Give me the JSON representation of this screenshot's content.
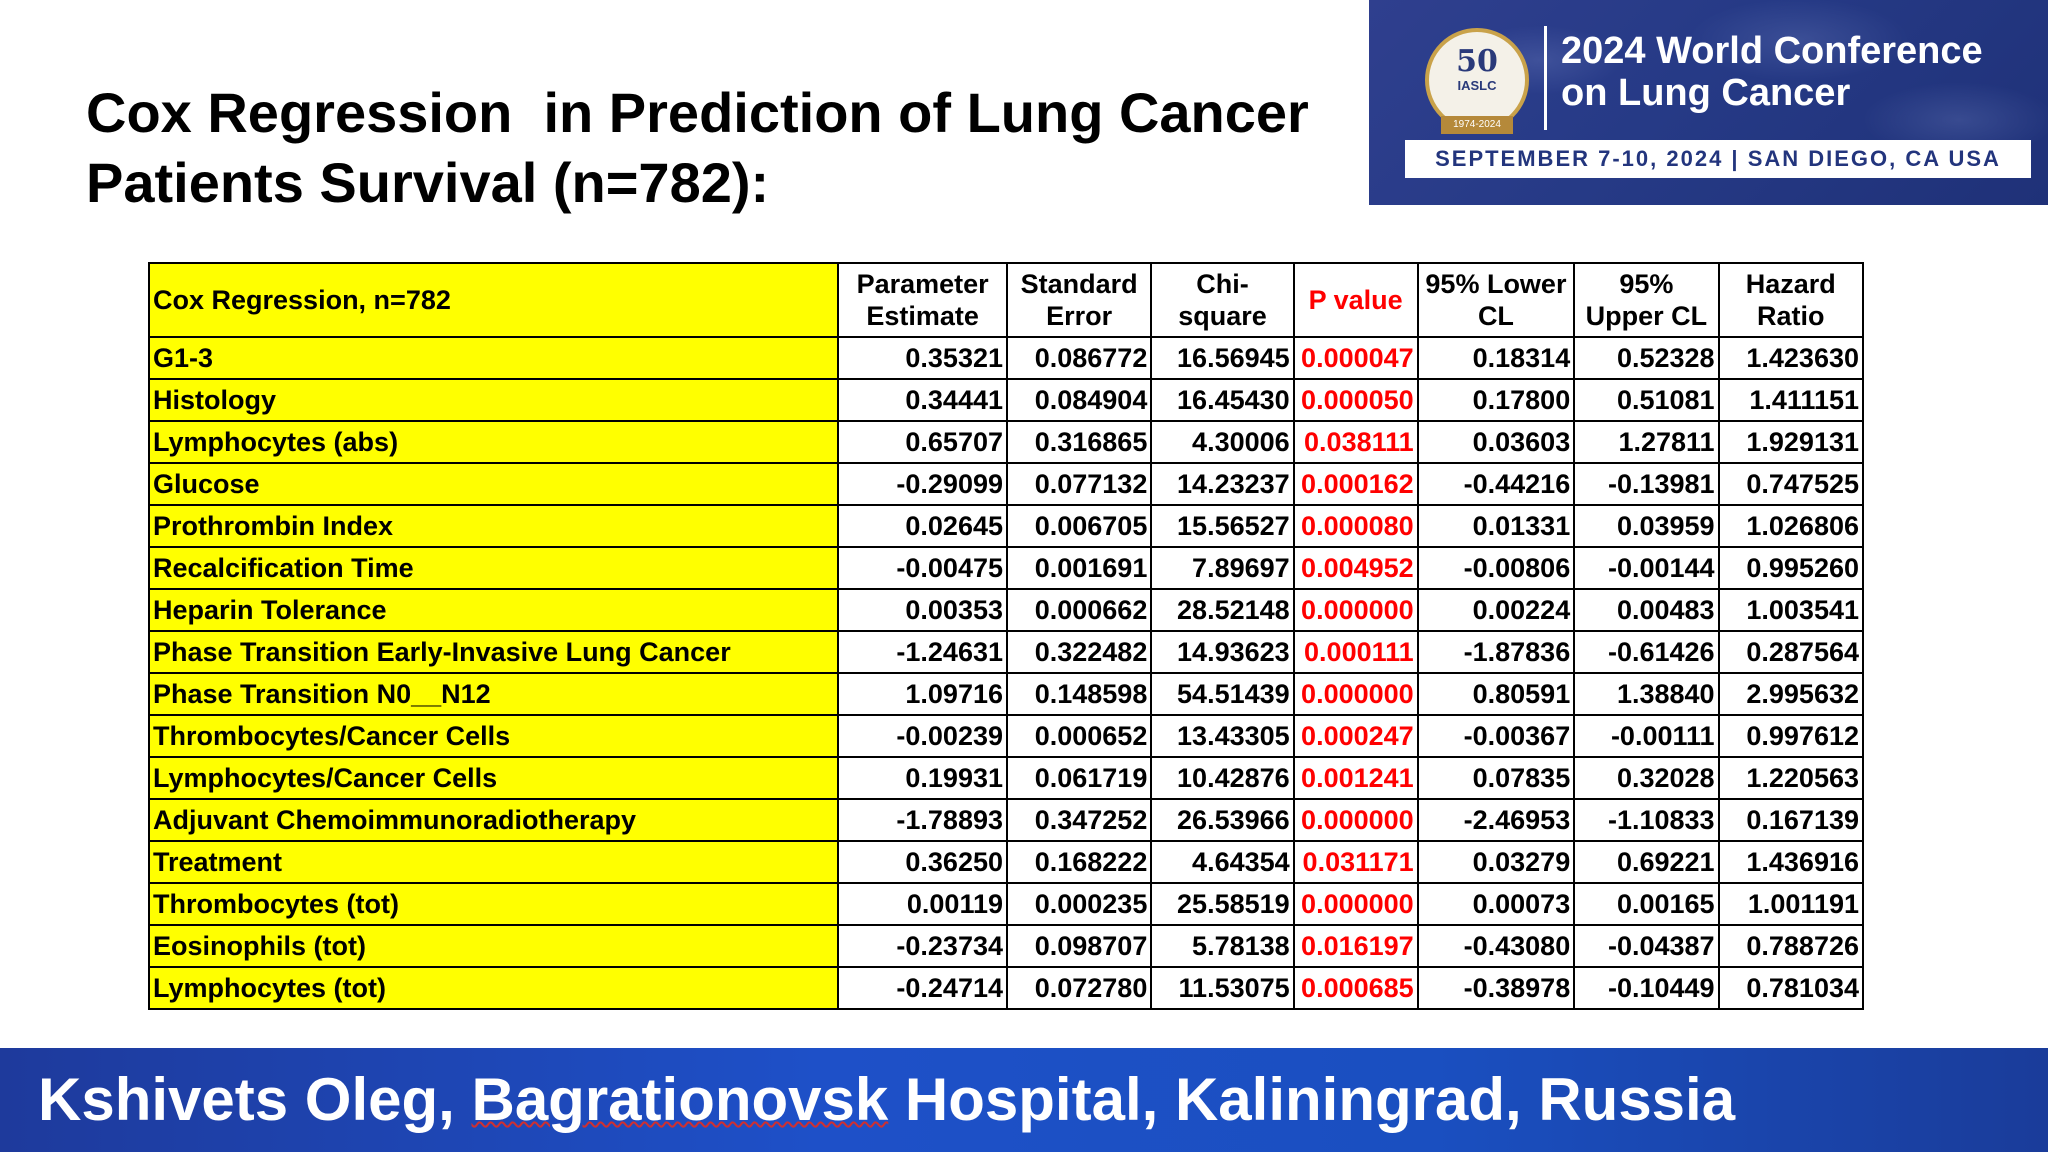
{
  "title": {
    "line1": "Cox Regression  in Prediction of Lung Cancer",
    "line2": "Patients Survival (n=782):"
  },
  "banner": {
    "seal_number": "50",
    "seal_org": "IASLC",
    "seal_years": "1974-2024",
    "conference_line1": "2024 World Conference",
    "conference_line2": "on Lung Cancer",
    "dates": "SEPTEMBER 7-10, 2024 | SAN DIEGO, CA USA"
  },
  "table": {
    "headers": [
      "Cox Regression, n=782",
      "Parameter Estimate",
      "Standard Error",
      "Chi-square",
      "P value",
      "95% Lower CL",
      "95% Upper CL",
      "Hazard Ratio"
    ],
    "rows": [
      [
        "G1-3",
        "0.35321",
        "0.086772",
        "16.56945",
        "0.000047",
        "0.18314",
        "0.52328",
        "1.423630"
      ],
      [
        "Histology",
        "0.34441",
        "0.084904",
        "16.45430",
        "0.000050",
        "0.17800",
        "0.51081",
        "1.411151"
      ],
      [
        "Lymphocytes (abs)",
        "0.65707",
        "0.316865",
        "4.30006",
        "0.038111",
        "0.03603",
        "1.27811",
        "1.929131"
      ],
      [
        "Glucose",
        "-0.29099",
        "0.077132",
        "14.23237",
        "0.000162",
        "-0.44216",
        "-0.13981",
        "0.747525"
      ],
      [
        "Prothrombin Index",
        "0.02645",
        "0.006705",
        "15.56527",
        "0.000080",
        "0.01331",
        "0.03959",
        "1.026806"
      ],
      [
        "Recalcification Time",
        "-0.00475",
        "0.001691",
        "7.89697",
        "0.004952",
        "-0.00806",
        "-0.00144",
        "0.995260"
      ],
      [
        "Heparin Tolerance",
        "0.00353",
        "0.000662",
        "28.52148",
        "0.000000",
        "0.00224",
        "0.00483",
        "1.003541"
      ],
      [
        "Phase Transition Early-Invasive Lung Cancer",
        "-1.24631",
        "0.322482",
        "14.93623",
        "0.000111",
        "-1.87836",
        "-0.61426",
        "0.287564"
      ],
      [
        "Phase Transition N0__N12",
        "1.09716",
        "0.148598",
        "54.51439",
        "0.000000",
        "0.80591",
        "1.38840",
        "2.995632"
      ],
      [
        "Thrombocytes/Cancer Cells",
        "-0.00239",
        "0.000652",
        "13.43305",
        "0.000247",
        "-0.00367",
        "-0.00111",
        "0.997612"
      ],
      [
        "Lymphocytes/Cancer Cells",
        "0.19931",
        "0.061719",
        "10.42876",
        "0.001241",
        "0.07835",
        "0.32028",
        "1.220563"
      ],
      [
        "Adjuvant Chemoimmunoradiotherapy",
        "-1.78893",
        "0.347252",
        "26.53966",
        "0.000000",
        "-2.46953",
        "-1.10833",
        "0.167139"
      ],
      [
        "Treatment",
        "0.36250",
        "0.168222",
        "4.64354",
        "0.031171",
        "0.03279",
        "0.69221",
        "1.436916"
      ],
      [
        "Thrombocytes (tot)",
        "0.00119",
        "0.000235",
        "25.58519",
        "0.000000",
        "0.00073",
        "0.00165",
        "1.001191"
      ],
      [
        "Eosinophils (tot)",
        "-0.23734",
        "0.098707",
        "5.78138",
        "0.016197",
        "-0.43080",
        "-0.04387",
        "0.788726"
      ],
      [
        "Lymphocytes (tot)",
        "-0.24714",
        "0.072780",
        "11.53075",
        "0.000685",
        "-0.38978",
        "-0.10449",
        "0.781034"
      ]
    ]
  },
  "footer": {
    "name": "Kshivets Oleg, ",
    "hospital": "Bagrationovsk",
    "rest": " Hospital, Kaliningrad, Russia"
  },
  "colors": {
    "label_fill": "#ffff00",
    "p_value": "#ff0000",
    "banner_bg": "#263a86",
    "footer_bg": "#1e50c8"
  }
}
